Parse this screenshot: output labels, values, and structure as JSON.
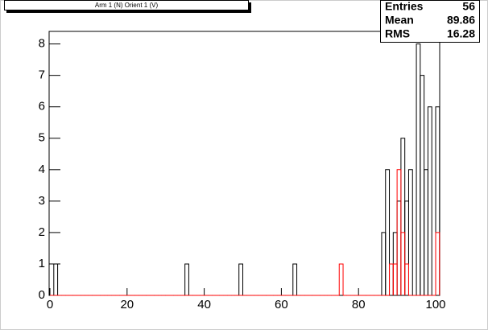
{
  "chart_data": {
    "type": "histogram",
    "title": "Arm 1 (N) Orient 1 (V)",
    "bins": [
      0,
      1,
      2,
      3,
      4,
      5,
      6,
      7,
      8,
      9,
      10,
      11,
      12,
      13,
      14,
      15,
      16,
      17,
      18,
      19,
      20,
      21,
      22,
      23,
      24,
      25,
      26,
      27,
      28,
      29,
      30,
      31,
      32,
      33,
      34,
      35,
      36,
      37,
      38,
      39,
      40,
      41,
      42,
      43,
      44,
      45,
      46,
      47,
      48,
      49,
      50,
      51,
      52,
      53,
      54,
      55,
      56,
      57,
      58,
      59,
      60,
      61,
      62,
      63,
      64,
      65,
      66,
      67,
      68,
      69,
      70,
      71,
      72,
      73,
      74,
      75,
      76,
      77,
      78,
      79,
      80,
      81,
      82,
      83,
      84,
      85,
      86,
      87,
      88,
      89,
      90,
      91,
      92,
      93,
      94,
      95,
      96,
      97,
      98,
      99,
      100,
      101
    ],
    "series": [
      {
        "color": "#000000",
        "values": [
          0,
          1,
          0,
          0,
          0,
          0,
          0,
          0,
          0,
          0,
          0,
          0,
          0,
          0,
          0,
          0,
          0,
          0,
          0,
          0,
          0,
          0,
          0,
          0,
          0,
          0,
          0,
          0,
          0,
          0,
          0,
          0,
          0,
          0,
          0,
          1,
          0,
          0,
          0,
          0,
          0,
          0,
          0,
          0,
          0,
          0,
          0,
          0,
          0,
          1,
          0,
          0,
          0,
          0,
          0,
          0,
          0,
          0,
          0,
          0,
          0,
          0,
          0,
          1,
          0,
          0,
          0,
          0,
          0,
          0,
          0,
          0,
          0,
          0,
          0,
          0,
          0,
          0,
          0,
          0,
          0,
          0,
          0,
          0,
          0,
          0,
          2,
          4,
          1,
          2,
          3,
          5,
          3,
          4,
          0,
          8,
          7,
          4,
          6,
          0,
          6
        ]
      },
      {
        "color": "#ff0000",
        "values": [
          0,
          0,
          0,
          0,
          0,
          0,
          0,
          0,
          0,
          0,
          0,
          0,
          0,
          0,
          0,
          0,
          0,
          0,
          0,
          0,
          0,
          0,
          0,
          0,
          0,
          0,
          0,
          0,
          0,
          0,
          0,
          0,
          0,
          0,
          0,
          0,
          0,
          0,
          0,
          0,
          0,
          0,
          0,
          0,
          0,
          0,
          0,
          0,
          0,
          0,
          0,
          0,
          0,
          0,
          0,
          0,
          0,
          0,
          0,
          0,
          0,
          0,
          0,
          0,
          0,
          0,
          0,
          0,
          0,
          0,
          0,
          0,
          0,
          0,
          0,
          1,
          0,
          0,
          0,
          0,
          0,
          0,
          0,
          0,
          0,
          0,
          0,
          0,
          1,
          1,
          4,
          2,
          1,
          0,
          0,
          0,
          0,
          0,
          0,
          0,
          2
        ]
      }
    ],
    "xlim": [
      0,
      101
    ],
    "xticks": [
      0,
      20,
      40,
      60,
      80,
      100
    ],
    "ylim": [
      0,
      8.4
    ],
    "yticks": [
      0,
      1,
      2,
      3,
      4,
      5,
      6,
      7,
      8
    ],
    "stats": [
      {
        "label": "Entries",
        "value": 56
      },
      {
        "label": "Mean",
        "value": 89.86
      },
      {
        "label": "RMS",
        "value": 16.28
      }
    ]
  }
}
